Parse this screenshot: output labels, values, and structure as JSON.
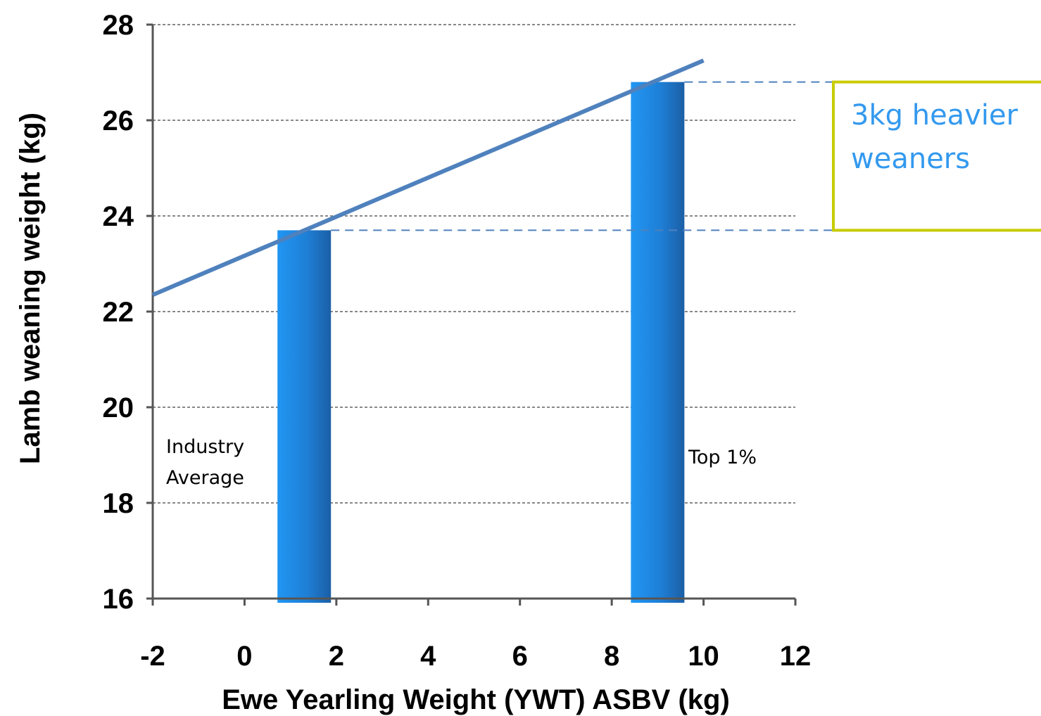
{
  "chart_data": {
    "type": "bar",
    "xlabel": "Ewe Yearling Weight (YWT) ASBV (kg)",
    "ylabel": "Lamb weaning weight (kg)",
    "xlim": [
      -2,
      12
    ],
    "ylim": [
      16,
      28
    ],
    "x_ticks": [
      "-2",
      "0",
      "2",
      "4",
      "6",
      "8",
      "10",
      "12"
    ],
    "y_ticks": [
      "16",
      "18",
      "20",
      "22",
      "24",
      "26",
      "28"
    ],
    "grid": true,
    "bars": [
      {
        "label": [
          "Industry",
          "Average"
        ],
        "x": 1.3,
        "value": 23.7
      },
      {
        "label": [
          "Top 1%"
        ],
        "x": 9.0,
        "value": 26.8
      }
    ],
    "trend_line": {
      "x": [
        -2,
        10
      ],
      "y": [
        22.35,
        27.25
      ]
    },
    "annotation": {
      "lines": [
        "3kg heavier",
        "weaners"
      ],
      "from": 23.7,
      "to": 26.8
    },
    "colors": {
      "bar_light": "#2196f3",
      "bar_dark": "#1c5fa6",
      "trend_line": "#4f81bd",
      "grid": "#888888",
      "callout_border": "#c8cc00",
      "callout_text": "#3399ee",
      "dashed_lines": "#4f81bd"
    }
  }
}
